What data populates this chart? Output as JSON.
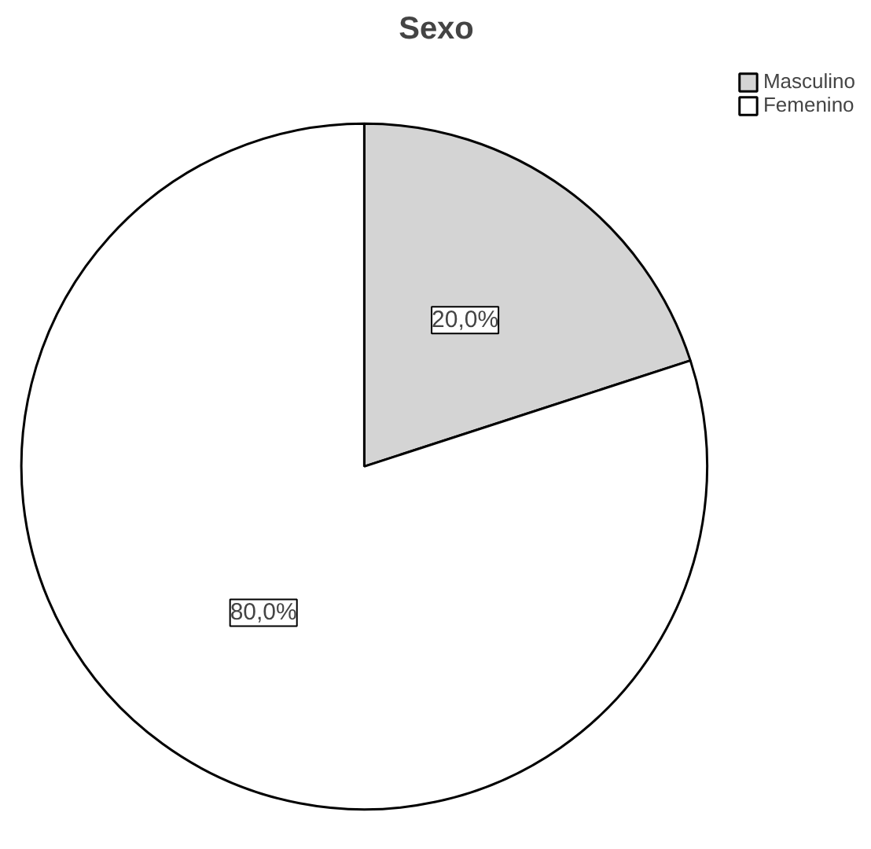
{
  "chart_data": {
    "type": "pie",
    "title": "Sexo",
    "categories": [
      "Masculino",
      "Femenino"
    ],
    "values": [
      20,
      80
    ],
    "colors": [
      "#d4d4d4",
      "#ffffff"
    ],
    "value_labels": [
      "20,0%",
      "80,0%"
    ],
    "legend": "top right"
  }
}
